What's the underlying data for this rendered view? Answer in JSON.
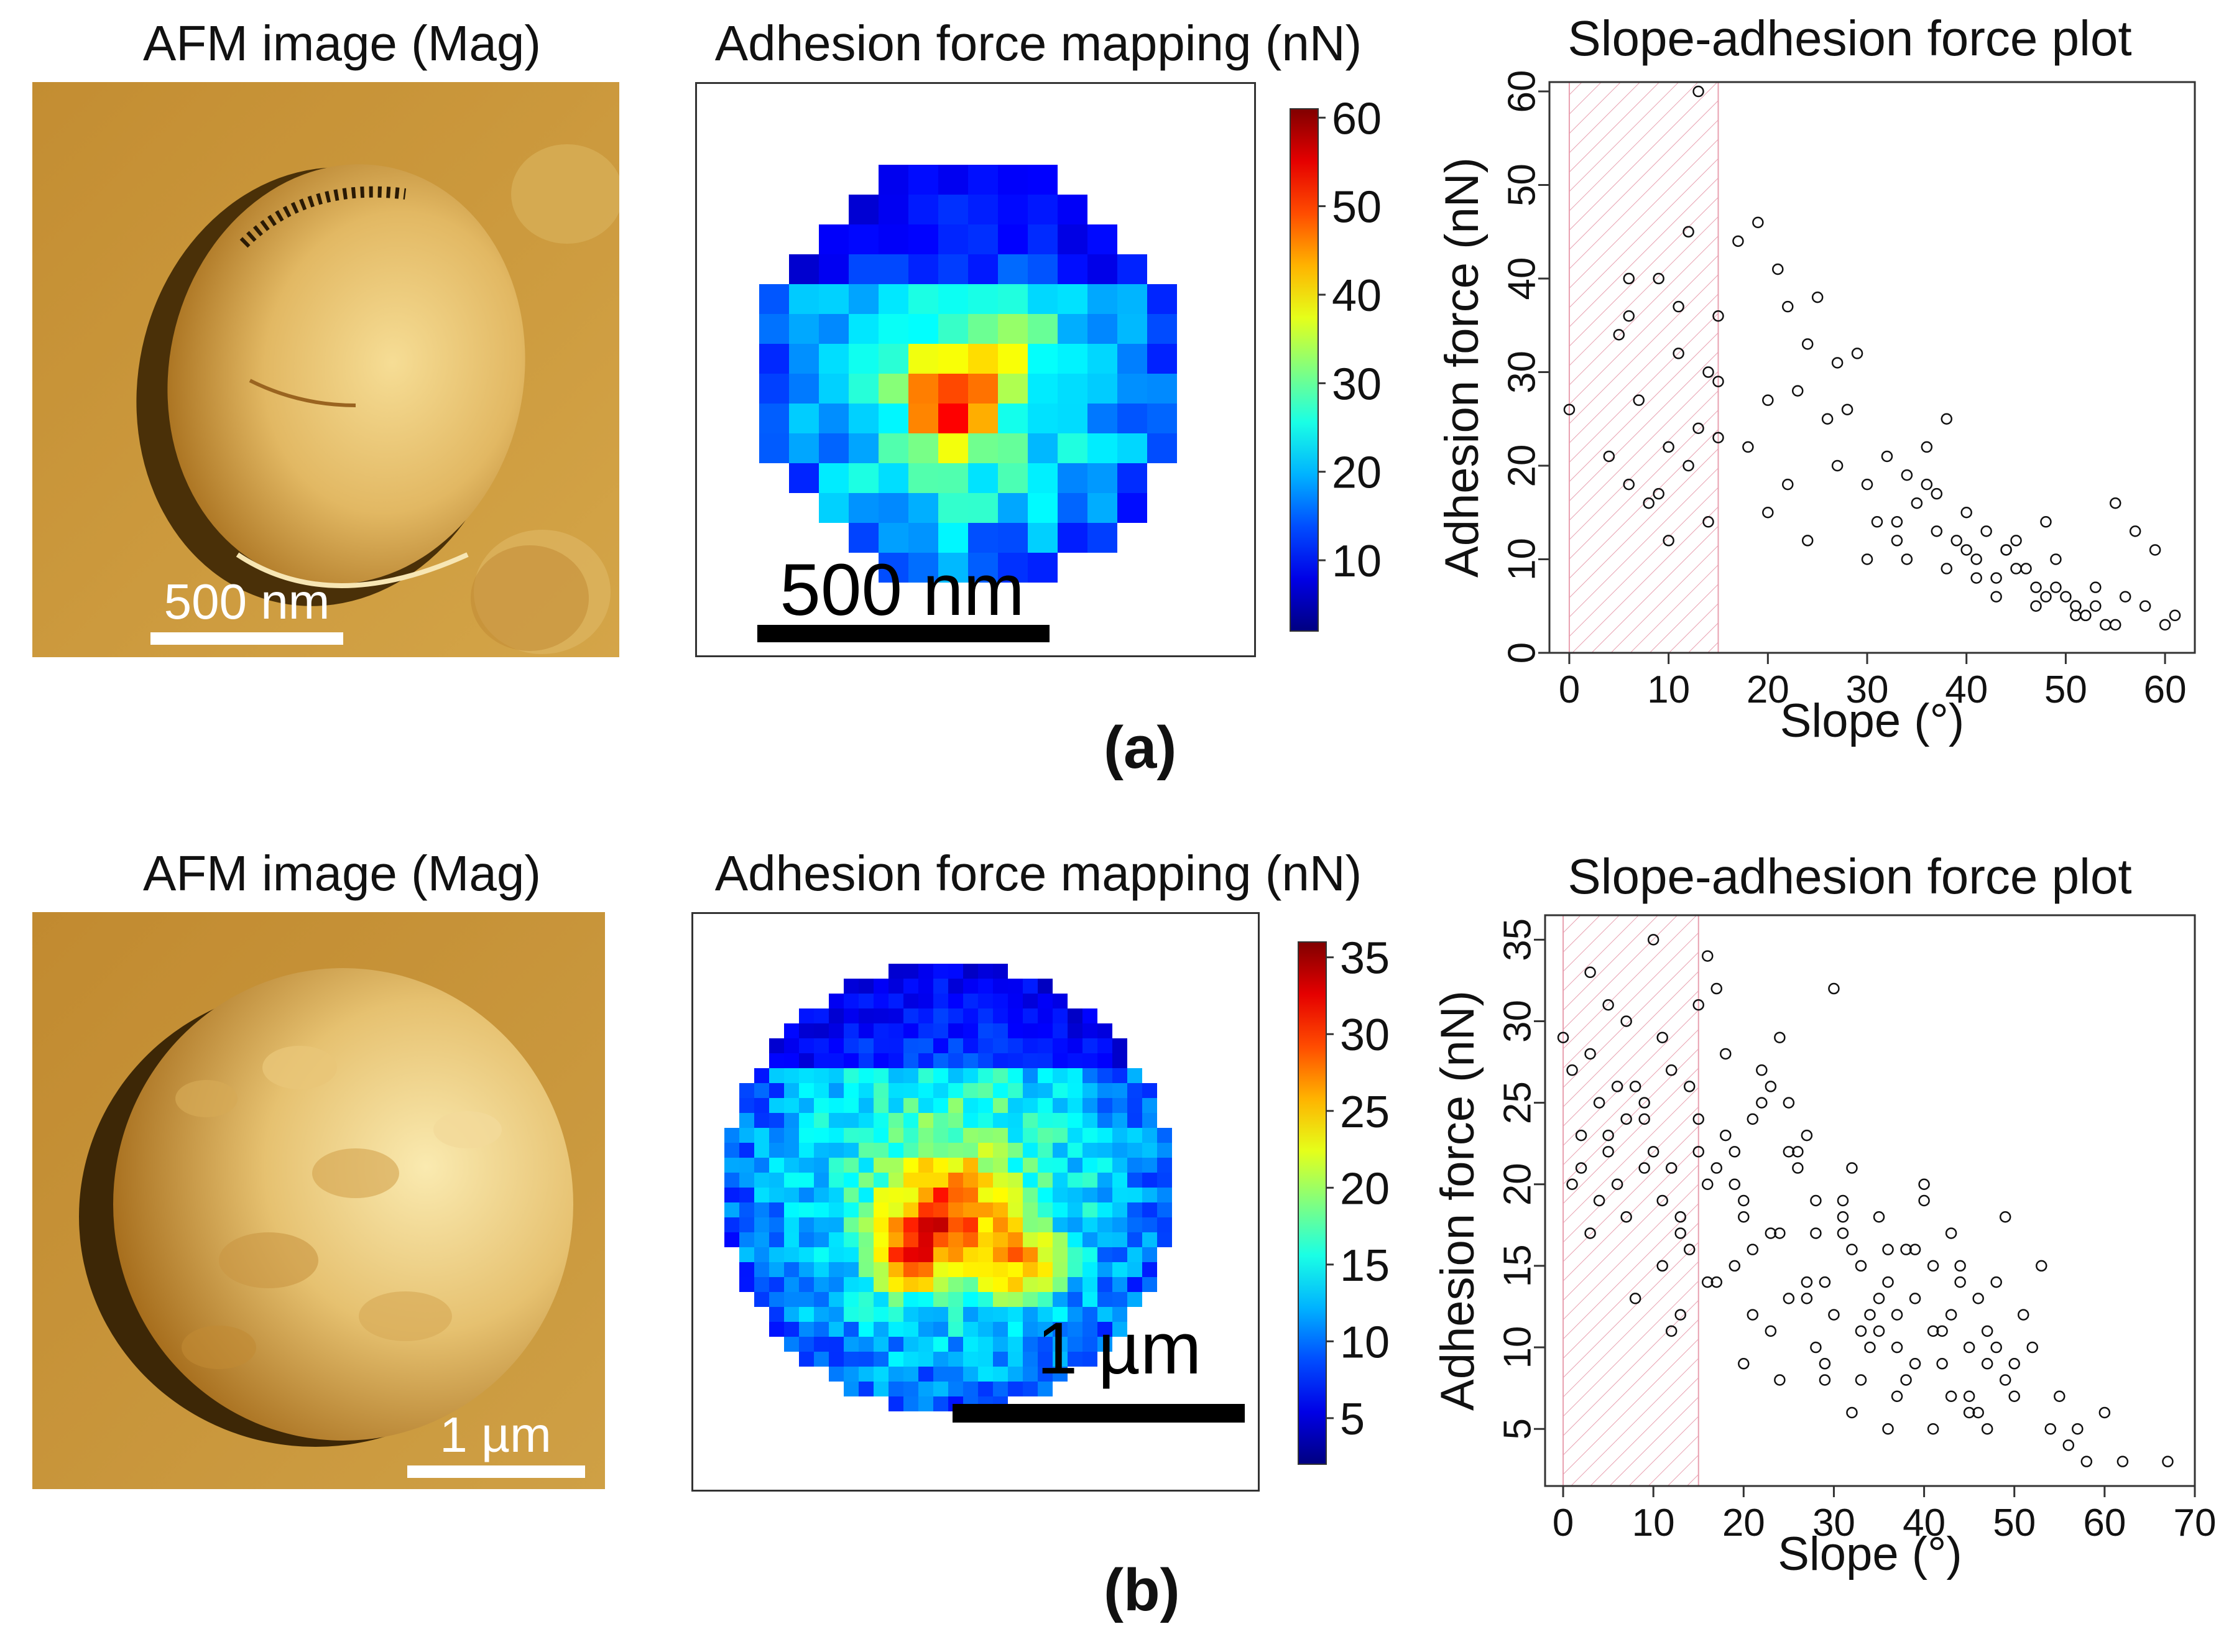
{
  "figure": {
    "labels": [
      "(a)",
      "(b)"
    ],
    "rows": [
      {
        "afm": {
          "title": "AFM image (Mag)",
          "scale_bar_label": "500 nm",
          "scale_bar_color": "#ffffff"
        },
        "map": {
          "title": "Adhesion force mapping (nN)",
          "scale_bar_label": "500 nm",
          "colorbar_ticks": [
            10,
            20,
            30,
            40,
            50,
            60
          ],
          "colorbar_range": [
            2,
            61
          ]
        },
        "plot_title": "Slope-adhesion force plot"
      },
      {
        "afm": {
          "title": "AFM image (Mag)",
          "scale_bar_label": "1 µm",
          "scale_bar_color": "#ffffff"
        },
        "map": {
          "title": "Adhesion force mapping (nN)",
          "scale_bar_label": "1 µm",
          "colorbar_ticks": [
            5,
            10,
            15,
            20,
            25,
            30,
            35
          ],
          "colorbar_range": [
            2,
            36
          ]
        },
        "plot_title": "Slope-adhesion force plot"
      }
    ]
  },
  "colors": {
    "afm_light": "#f3d98c",
    "afm_mid": "#c89436",
    "afm_dark": "#3a2508",
    "shade_stroke": "#e8a0b0"
  },
  "chart_data": [
    {
      "type": "scatter",
      "title": "Slope-adhesion force plot",
      "xlabel": "Slope (°)",
      "ylabel": "Adhesion force (nN)",
      "xlim": [
        -2,
        63
      ],
      "ylim": [
        0,
        61
      ],
      "xticks": [
        0,
        10,
        20,
        30,
        40,
        50,
        60
      ],
      "yticks": [
        0,
        10,
        20,
        30,
        40,
        50,
        60
      ],
      "shaded_x_range": [
        0,
        15
      ],
      "x": [
        0,
        6,
        4,
        6,
        6,
        5,
        7,
        8,
        9,
        10,
        11,
        12,
        12,
        10,
        13,
        14,
        14,
        13,
        15,
        15,
        15,
        11,
        9,
        17,
        19,
        21,
        22,
        24,
        25,
        27,
        29,
        18,
        20,
        23,
        26,
        28,
        30,
        32,
        33,
        34,
        35,
        36,
        37,
        38,
        39,
        40,
        41,
        42,
        43,
        44,
        45,
        46,
        47,
        48,
        49,
        50,
        51,
        52,
        53,
        54,
        55,
        56,
        57,
        58,
        59,
        60,
        61,
        20,
        22,
        24,
        27,
        30,
        33,
        36,
        38,
        40,
        43,
        45,
        47,
        49,
        51,
        53,
        31,
        34,
        37,
        41,
        44,
        48,
        52,
        55
      ],
      "y": [
        26,
        40,
        21,
        18,
        36,
        34,
        27,
        16,
        40,
        22,
        37,
        20,
        45,
        12,
        60,
        14,
        30,
        24,
        36,
        29,
        23,
        32,
        17,
        44,
        46,
        41,
        37,
        33,
        38,
        31,
        32,
        22,
        27,
        28,
        25,
        26,
        18,
        21,
        14,
        19,
        16,
        22,
        17,
        25,
        12,
        15,
        10,
        13,
        8,
        11,
        12,
        9,
        7,
        14,
        10,
        6,
        5,
        4,
        7,
        3,
        16,
        6,
        13,
        5,
        11,
        3,
        4,
        15,
        18,
        12,
        20,
        10,
        12,
        18,
        9,
        11,
        6,
        9,
        5,
        7,
        4,
        5,
        14,
        10,
        13,
        8,
        11,
        6,
        4,
        3
      ]
    },
    {
      "type": "scatter",
      "title": "Slope-adhesion force plot",
      "xlabel": "Slope (°)",
      "ylabel": "Adhesion force (nN)",
      "xlim": [
        -2,
        70
      ],
      "ylim": [
        1.5,
        36.5
      ],
      "xticks": [
        0,
        10,
        20,
        30,
        40,
        50,
        60,
        70
      ],
      "yticks": [
        5,
        10,
        15,
        20,
        25,
        30,
        35
      ],
      "shaded_x_range": [
        0,
        15
      ],
      "x": [
        0,
        1,
        2,
        3,
        4,
        5,
        6,
        7,
        8,
        9,
        10,
        11,
        12,
        13,
        14,
        15,
        16,
        17,
        18,
        19,
        20,
        21,
        22,
        23,
        24,
        25,
        26,
        27,
        28,
        29,
        30,
        31,
        32,
        33,
        34,
        35,
        36,
        37,
        38,
        39,
        40,
        41,
        42,
        43,
        44,
        45,
        46,
        47,
        48,
        49,
        50,
        51,
        52,
        53,
        54,
        55,
        56,
        57,
        58,
        60,
        62,
        67,
        2,
        4,
        6,
        8,
        10,
        12,
        14,
        16,
        18,
        20,
        22,
        24,
        26,
        28,
        30,
        32,
        34,
        36,
        38,
        40,
        42,
        44,
        46,
        48,
        50,
        1,
        3,
        5,
        7,
        9,
        11,
        13,
        15,
        17,
        19,
        21,
        23,
        25,
        27,
        29,
        31,
        33,
        35,
        37,
        39,
        41,
        43,
        45,
        47,
        49,
        3,
        7,
        11,
        15,
        19,
        23,
        27,
        31,
        35,
        39,
        43,
        47,
        5,
        9,
        13,
        17,
        21,
        25,
        29,
        33,
        37,
        41,
        45,
        12,
        16,
        20,
        24,
        28,
        32,
        36
      ],
      "y": [
        29,
        27,
        23,
        33,
        25,
        31,
        20,
        30,
        26,
        24,
        35,
        29,
        21,
        18,
        26,
        31,
        34,
        32,
        28,
        22,
        19,
        24,
        27,
        17,
        29,
        25,
        21,
        23,
        17,
        14,
        32,
        19,
        16,
        15,
        12,
        18,
        14,
        10,
        16,
        13,
        20,
        11,
        9,
        17,
        15,
        7,
        13,
        11,
        14,
        18,
        9,
        12,
        10,
        15,
        5,
        7,
        4,
        5,
        3,
        6,
        3,
        3,
        21,
        19,
        26,
        13,
        22,
        27,
        16,
        20,
        23,
        18,
        25,
        17,
        22,
        19,
        12,
        21,
        10,
        16,
        8,
        19,
        11,
        14,
        6,
        10,
        7,
        20,
        17,
        23,
        18,
        21,
        15,
        12,
        24,
        14,
        20,
        16,
        11,
        22,
        13,
        9,
        18,
        8,
        13,
        12,
        9,
        15,
        7,
        10,
        5,
        8,
        28,
        24,
        19,
        22,
        15,
        26,
        14,
        17,
        11,
        16,
        12,
        9,
        22,
        25,
        17,
        21,
        12,
        13,
        8,
        11,
        7,
        5,
        6,
        11,
        14,
        9,
        8,
        10,
        6,
        5
      ]
    }
  ]
}
